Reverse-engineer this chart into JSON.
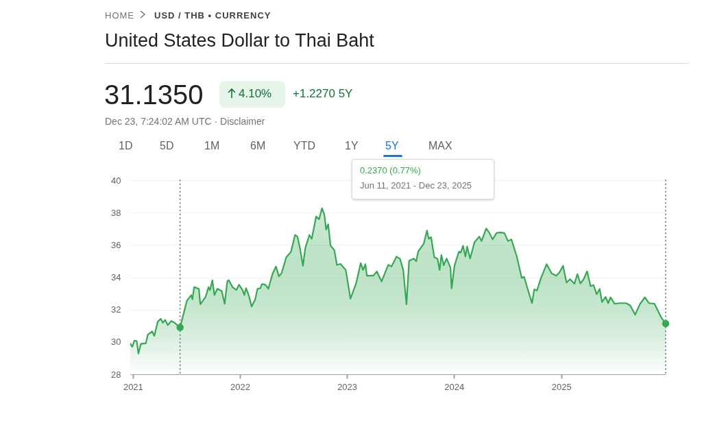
{
  "chart_data": {
    "type": "area",
    "title": "United States Dollar to Thai Baht",
    "annotations": [
      "HOME",
      "USD / THB • CURRENCY",
      "31.1350",
      "4.10%",
      "+1.2270 5Y",
      "Dec 23, 7:24:02 AM UTC · Disclaimer",
      "1D",
      "5D",
      "1M",
      "6M",
      "YTD",
      "1Y",
      "5Y",
      "MAX",
      "0.2370 (0.77%)",
      "Jun 11, 2021 - Dec 23, 2025"
    ],
    "xlim": [
      "2020-12-23",
      "2025-12-23"
    ],
    "xticks": [
      "2021",
      "2022",
      "2023",
      "2024",
      "2025"
    ],
    "ylim": [
      28,
      40
    ],
    "yticks": [
      28,
      30,
      32,
      34,
      36,
      38,
      40
    ],
    "grid": "y",
    "marker": "none",
    "series": [
      {
        "color": "#34a853",
        "x": [
          "2020-12-23",
          "2020-12-30",
          "2021-01-06",
          "2021-01-14",
          "2021-01-20",
          "2021-01-28",
          "2021-02-14",
          "2021-02-21",
          "2021-03-08",
          "2021-03-15",
          "2021-03-27",
          "2021-04-06",
          "2021-04-13",
          "2021-04-21",
          "2021-04-30",
          "2021-05-12",
          "2021-05-23",
          "2021-06-11",
          "2021-07-04",
          "2021-07-19",
          "2021-07-23",
          "2021-07-29",
          "2021-08-14",
          "2021-08-19",
          "2021-09-06",
          "2021-09-16",
          "2021-09-21",
          "2021-09-29",
          "2021-10-06",
          "2021-10-16",
          "2021-10-31",
          "2021-11-10",
          "2021-11-19",
          "2021-11-24",
          "2021-12-07",
          "2021-12-20",
          "2021-12-29",
          "2022-01-10",
          "2022-01-16",
          "2022-01-22",
          "2022-02-01",
          "2022-02-10",
          "2022-02-22",
          "2022-03-02",
          "2022-03-12",
          "2022-03-17",
          "2022-03-29",
          "2022-04-08",
          "2022-04-22",
          "2022-05-04",
          "2022-05-14",
          "2022-05-23",
          "2022-06-08",
          "2022-06-24",
          "2022-07-08",
          "2022-07-16",
          "2022-07-24",
          "2022-08-04",
          "2022-08-12",
          "2022-08-26",
          "2022-09-03",
          "2022-09-18",
          "2022-09-28",
          "2022-10-08",
          "2022-10-16",
          "2022-10-22",
          "2022-10-29",
          "2022-11-06",
          "2022-11-19",
          "2022-11-28",
          "2022-12-10",
          "2022-12-28",
          "2023-01-13",
          "2023-02-01",
          "2023-02-17",
          "2023-02-25",
          "2023-03-05",
          "2023-03-10",
          "2023-04-01",
          "2023-04-13",
          "2023-04-29",
          "2023-05-22",
          "2023-06-02",
          "2023-06-19",
          "2023-07-01",
          "2023-07-12",
          "2023-07-23",
          "2023-08-01",
          "2023-08-17",
          "2023-08-25",
          "2023-09-01",
          "2023-09-20",
          "2023-10-01",
          "2023-10-07",
          "2023-10-15",
          "2023-10-26",
          "2023-11-06",
          "2023-11-13",
          "2023-11-19",
          "2023-11-27",
          "2023-12-07",
          "2023-12-20",
          "2023-12-24",
          "2024-01-03",
          "2024-01-18",
          "2024-01-24",
          "2024-02-01",
          "2024-02-09",
          "2024-02-15",
          "2024-02-25",
          "2024-03-11",
          "2024-03-27",
          "2024-04-04",
          "2024-04-20",
          "2024-05-01",
          "2024-05-12",
          "2024-05-25",
          "2024-06-06",
          "2024-06-21",
          "2024-07-03",
          "2024-07-15",
          "2024-08-03",
          "2024-08-19",
          "2024-08-27",
          "2024-09-23",
          "2024-10-01",
          "2024-10-10",
          "2024-10-24",
          "2024-11-12",
          "2024-11-29",
          "2024-12-15",
          "2024-12-26",
          "2025-01-07",
          "2025-01-19",
          "2025-01-31",
          "2025-02-15",
          "2025-02-25",
          "2025-03-07",
          "2025-03-18",
          "2025-03-30",
          "2025-04-11",
          "2025-04-21",
          "2025-05-02",
          "2025-05-12",
          "2025-05-20",
          "2025-06-01",
          "2025-06-10",
          "2025-06-18",
          "2025-07-02",
          "2025-07-21",
          "2025-08-10",
          "2025-08-24",
          "2025-09-10",
          "2025-09-26",
          "2025-10-13",
          "2025-10-27",
          "2025-11-15",
          "2025-12-09",
          "2025-12-23"
        ],
        "values": [
          29.91,
          29.7,
          30.08,
          30.05,
          29.28,
          29.88,
          29.91,
          30.45,
          30.65,
          30.37,
          31.26,
          31.43,
          31.19,
          31.36,
          31.04,
          31.3,
          31.19,
          30.9,
          32.54,
          32.9,
          32.64,
          33.39,
          33.29,
          32.33,
          32.79,
          33.39,
          33.21,
          33.82,
          32.9,
          33.29,
          33.15,
          32.36,
          33.75,
          33.82,
          33.39,
          33.21,
          33.54,
          33.21,
          32.9,
          33.33,
          32.83,
          32.19,
          32.62,
          33.29,
          33.33,
          33.58,
          33.54,
          33.29,
          34.2,
          34.67,
          34.06,
          34.25,
          35.24,
          35.57,
          36.62,
          36.52,
          35.88,
          34.72,
          35.81,
          36.62,
          36.38,
          37.76,
          37.59,
          38.27,
          37.87,
          36.95,
          37.28,
          35.96,
          35.68,
          34.76,
          34.83,
          34.45,
          32.68,
          33.6,
          34.88,
          34.45,
          34.81,
          34.1,
          34.1,
          34.36,
          33.74,
          34.77,
          34.67,
          35.28,
          35.14,
          34.45,
          32.33,
          35.02,
          35.16,
          34.99,
          35.59,
          36.08,
          36.89,
          36.38,
          36.48,
          35.24,
          35.14,
          34.45,
          35.38,
          34.74,
          35.16,
          34.6,
          33.32,
          34.74,
          35.59,
          35.52,
          35.95,
          35.28,
          35.9,
          35.16,
          36.16,
          36.52,
          36.24,
          37.02,
          36.74,
          36.34,
          36.74,
          36.77,
          36.74,
          36.24,
          36.34,
          35.24,
          33.96,
          34.03,
          32.4,
          33.25,
          33.18,
          33.96,
          34.81,
          34.24,
          34.1,
          34.31,
          34.71,
          33.67,
          33.88,
          33.6,
          34.2,
          33.62,
          33.88,
          34.37,
          33.45,
          33.52,
          32.95,
          33.28,
          32.47,
          32.79,
          32.4,
          32.76,
          32.36,
          32.4,
          32.4,
          32.26,
          31.69,
          32.33,
          32.76,
          32.4,
          32.36,
          31.48,
          31.14
        ]
      },
      {
        "type": "scatter",
        "color": "#34a853",
        "marker": "circle",
        "x": [
          "2021-06-11",
          "2025-12-23"
        ],
        "values": [
          30.9,
          31.14
        ]
      }
    ],
    "ref_lines": [
      {
        "axis": "x",
        "value": "2021-06-11",
        "color": "#80868b",
        "line_style": "dotted"
      },
      {
        "axis": "x",
        "value": "2025-12-23",
        "color": "#80868b",
        "line_style": "dotted"
      }
    ]
  }
}
